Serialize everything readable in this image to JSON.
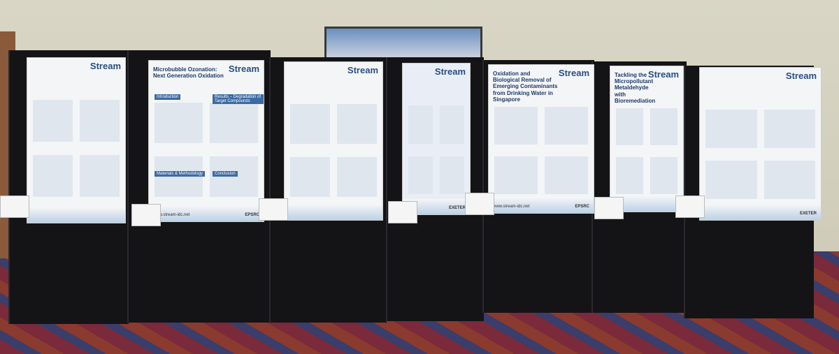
{
  "posters": [
    {
      "header": "Stream"
    },
    {
      "header": "Stream",
      "title": "Microbubble Ozonation: Next Generation Oxidation",
      "sections": [
        "Introduction",
        "Results – Degradation of Target Compounds",
        "Materials & Methodology",
        "Conclusion"
      ],
      "footer": "www.stream-idc.net",
      "logo": "EPSRC"
    },
    {
      "header": "Stream"
    },
    {
      "header": "Stream",
      "logo": "EXETER"
    },
    {
      "header": "Stream",
      "title": "Oxidation and Biological Removal of Emerging Contaminants from Drinking Water in Singapore",
      "footer": "www.stream-idc.net",
      "logo": "EPSRC"
    },
    {
      "header": "Stream",
      "title": "Tackling the Micropollutant Metaldehyde with Bioremediation"
    },
    {
      "header": "Stream",
      "logo": "EXETER"
    }
  ]
}
